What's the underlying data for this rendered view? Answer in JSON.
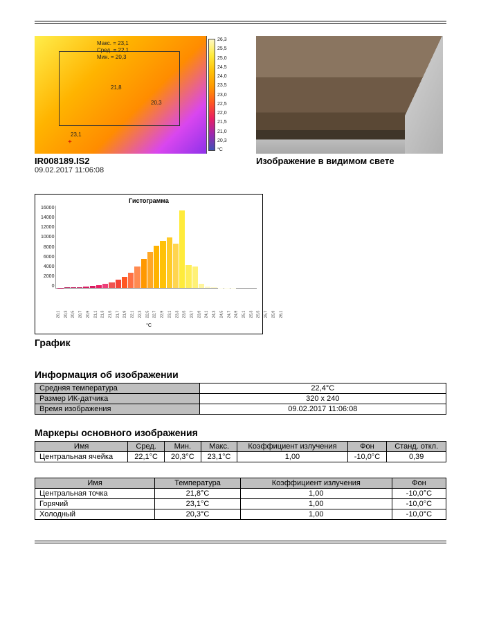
{
  "thermal": {
    "filename": "IR008189.IS2",
    "timestamp": "09.02.2017 11:06:08",
    "overlay": {
      "max": "Макс. = 23,1",
      "avg": "Сред. = 22,1",
      "min": "Мин. = 20,3",
      "p1": "21,8",
      "p2": "20,3",
      "p3": "23,1"
    },
    "scale": {
      "ticks": [
        "26,3",
        "25,5",
        "25,0",
        "24,5",
        "24,0",
        "23,5",
        "23,0",
        "22,5",
        "22,0",
        "21,5",
        "21,0",
        "20,3"
      ],
      "unit": "°C"
    }
  },
  "visible": {
    "caption": "Изображение в видимом свете"
  },
  "histogram": {
    "title": "Гистограмма",
    "caption": "График",
    "ymax": 16000,
    "yticks": [
      "16000",
      "14000",
      "12000",
      "10000",
      "8000",
      "6000",
      "4000",
      "2000",
      "0"
    ],
    "xticks": [
      "20,1",
      "20,3",
      "20,5",
      "20,7",
      "20,9",
      "21,1",
      "21,3",
      "21,5",
      "21,7",
      "21,9",
      "22,1",
      "22,3",
      "22,5",
      "22,7",
      "22,9",
      "23,1",
      "23,3",
      "23,5",
      "23,7",
      "23,9",
      "24,1",
      "24,3",
      "24,5",
      "24,7",
      "24,9",
      "25,1",
      "25,3",
      "25,5",
      "25,7",
      "25,9",
      "26,1"
    ],
    "unit": "°C",
    "bars": [
      {
        "v": 50,
        "c": "#b71c5a"
      },
      {
        "v": 80,
        "c": "#b71c5a"
      },
      {
        "v": 120,
        "c": "#c2185b"
      },
      {
        "v": 180,
        "c": "#c2185b"
      },
      {
        "v": 260,
        "c": "#d81b60"
      },
      {
        "v": 380,
        "c": "#d81b60"
      },
      {
        "v": 550,
        "c": "#e91e63"
      },
      {
        "v": 800,
        "c": "#ec407a"
      },
      {
        "v": 1100,
        "c": "#ef5350"
      },
      {
        "v": 1600,
        "c": "#f44336"
      },
      {
        "v": 2200,
        "c": "#ff5722"
      },
      {
        "v": 3000,
        "c": "#ff7043"
      },
      {
        "v": 4200,
        "c": "#ff8a50"
      },
      {
        "v": 5600,
        "c": "#ff9800"
      },
      {
        "v": 7000,
        "c": "#ffa726"
      },
      {
        "v": 8200,
        "c": "#ffb300"
      },
      {
        "v": 9200,
        "c": "#ffc107"
      },
      {
        "v": 9800,
        "c": "#ffca28"
      },
      {
        "v": 8600,
        "c": "#ffd54f"
      },
      {
        "v": 15000,
        "c": "#ffeb3b"
      },
      {
        "v": 4500,
        "c": "#ffee58"
      },
      {
        "v": 4200,
        "c": "#fff176"
      },
      {
        "v": 800,
        "c": "#fff59d"
      },
      {
        "v": 300,
        "c": "#fff9c4"
      },
      {
        "v": 100,
        "c": "#fff9c4"
      },
      {
        "v": 50,
        "c": "#fffde7"
      },
      {
        "v": 30,
        "c": "#fffde7"
      },
      {
        "v": 20,
        "c": "#fffde7"
      },
      {
        "v": 10,
        "c": "#fffde7"
      },
      {
        "v": 10,
        "c": "#fffde7"
      },
      {
        "v": 10,
        "c": "#fffde7"
      }
    ]
  },
  "info": {
    "title": "Информация об изображении",
    "rows": [
      {
        "label": "Средняя температура",
        "value": "22,4°C"
      },
      {
        "label": "Размер ИК-датчика",
        "value": "320 x 240"
      },
      {
        "label": "Время изображения",
        "value": "09.02.2017 11:06:08"
      }
    ]
  },
  "markers": {
    "title": "Маркеры основного изображения",
    "headers": [
      "Имя",
      "Сред.",
      "Мин.",
      "Макс.",
      "Коэффициент излучения",
      "Фон",
      "Станд. откл."
    ],
    "row": [
      "Центральная ячейка",
      "22,1°C",
      "20,3°C",
      "23,1°C",
      "1,00",
      "-10,0°C",
      "0,39"
    ]
  },
  "points": {
    "headers": [
      "Имя",
      "Температура",
      "Коэффициент излучения",
      "Фон"
    ],
    "rows": [
      [
        "Центральная точка",
        "21,8°C",
        "1,00",
        "-10,0°C"
      ],
      [
        "Горячий",
        "23,1°C",
        "1,00",
        "-10,0°C"
      ],
      [
        "Холодный",
        "20,3°C",
        "1,00",
        "-10,0°C"
      ]
    ]
  }
}
